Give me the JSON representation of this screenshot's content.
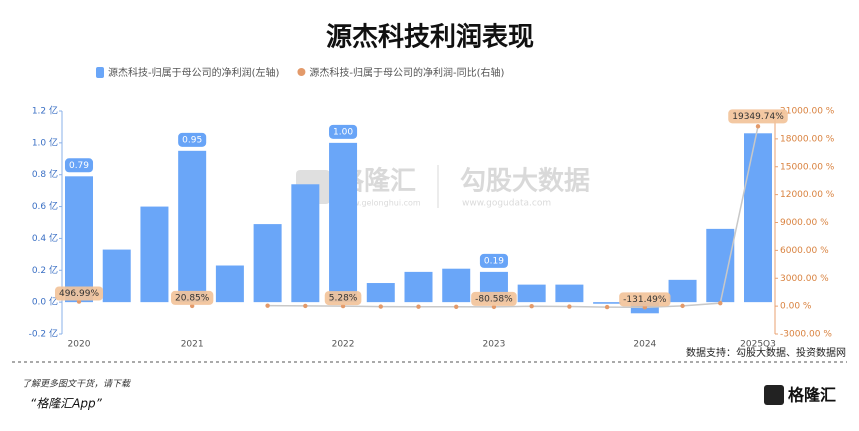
{
  "chart_data": {
    "type": "bar",
    "title": "源杰科技利润表现",
    "categories": [
      "2020",
      null,
      null,
      "2021",
      null,
      null,
      null,
      "2022",
      null,
      null,
      null,
      "2023",
      null,
      null,
      null,
      "2024",
      null,
      null,
      "2025Q3"
    ],
    "series": [
      {
        "name": "源杰科技-归属于母公司的净利润(左轴)",
        "type": "bar",
        "color": "#6aa6f8",
        "values": [
          0.79,
          0.33,
          0.6,
          0.95,
          0.23,
          0.49,
          0.74,
          1.0,
          0.12,
          0.19,
          0.21,
          0.19,
          0.11,
          0.11,
          -0.01,
          -0.07,
          0.14,
          0.46,
          1.06
        ],
        "value_labels": [
          "0.79",
          null,
          null,
          "0.95",
          null,
          null,
          null,
          "1.00",
          null,
          null,
          null,
          "0.19",
          null,
          null,
          null,
          null,
          null,
          null,
          null
        ]
      },
      {
        "name": "源杰科技-归属于母公司的净利润-同比(右轴)",
        "type": "line",
        "axis": "y2",
        "color": "#e39a6a",
        "values": [
          496.99,
          null,
          null,
          20.85,
          null,
          48,
          23,
          5.28,
          -48,
          -61,
          -72,
          -80.58,
          -8,
          -42,
          -105,
          -131.49,
          27,
          318,
          19349.74
        ],
        "value_labels": [
          "496.99%",
          null,
          null,
          "20.85%",
          null,
          null,
          null,
          "5.28%",
          null,
          null,
          null,
          "-80.58%",
          null,
          null,
          null,
          "-131.49%",
          null,
          null,
          "19349.74%"
        ]
      }
    ],
    "ylim": [
      -0.2,
      1.2
    ],
    "yticks": [
      {
        "value": -0.2,
        "label": "-0.2 亿"
      },
      {
        "value": 0,
        "label": "0.0 亿"
      },
      {
        "value": 0.2,
        "label": "0.2 亿"
      },
      {
        "value": 0.4,
        "label": "0.4 亿"
      },
      {
        "value": 0.6,
        "label": "0.6 亿"
      },
      {
        "value": 0.8,
        "label": "0.8 亿"
      },
      {
        "value": 1.0,
        "label": "1.0 亿"
      },
      {
        "value": 1.2,
        "label": "1.2 亿"
      }
    ],
    "y2lim": [
      -3000,
      21000
    ],
    "y2ticks": [
      {
        "value": -3000,
        "label": "-3000.00 %"
      },
      {
        "value": 0,
        "label": "0.00 %"
      },
      {
        "value": 3000,
        "label": "3000.00 %"
      },
      {
        "value": 6000,
        "label": "6000.00 %"
      },
      {
        "value": 9000,
        "label": "9000.00 %"
      },
      {
        "value": 12000,
        "label": "12000.00 %"
      },
      {
        "value": 15000,
        "label": "15000.00 %"
      },
      {
        "value": 18000,
        "label": "18000.00 %"
      },
      {
        "value": 21000,
        "label": "21000.00 %"
      }
    ],
    "source": "数据支持：勾股大数据、投资数据网"
  },
  "footer": {
    "line1": "了解更多图文干货，请下载",
    "line2": "“格隆汇App”",
    "logo": "格隆汇"
  },
  "watermark": {
    "left": "格隆汇",
    "right": "勾股大数据",
    "left_url": "www.gelonghui.com",
    "right_url": "www.gogudata.com"
  }
}
